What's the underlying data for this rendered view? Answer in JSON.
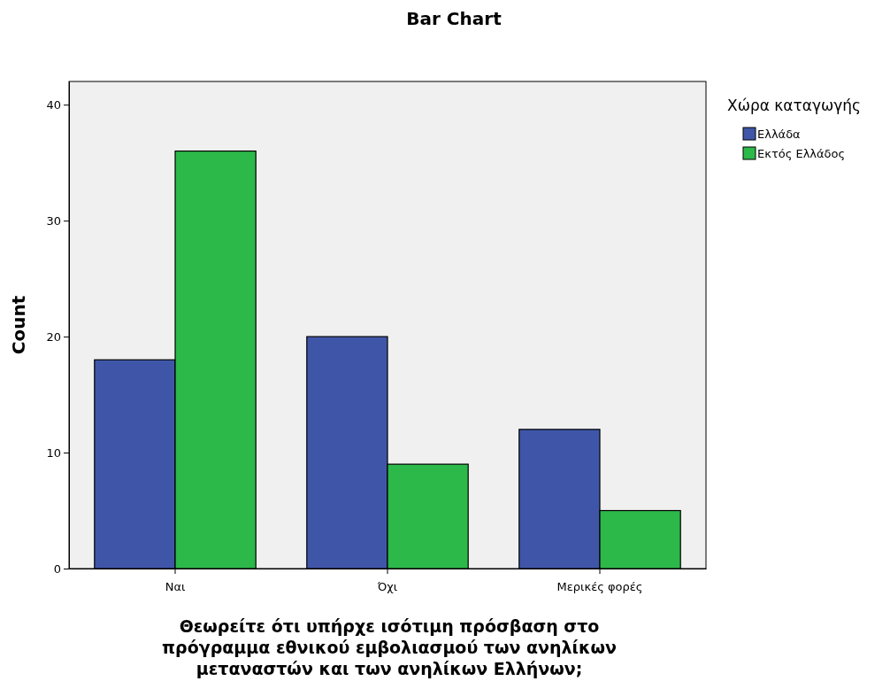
{
  "chart_data": {
    "type": "bar",
    "title": "Bar Chart",
    "xlabel": "Θεωρείτε ότι υπήρχε ισότιμη πρόσβαση στο πρόγραμμα εθνικού εμβολιασμού των ανηλίκων μεταναστών και των ανηλίκων Ελλήνων;",
    "ylabel": "Count",
    "legend_title": "Χώρα καταγωγής",
    "categories": [
      "Ναι",
      "Όχι",
      "Μερικές φορές"
    ],
    "series": [
      {
        "name": "Ελλάδα",
        "color": "#3f56a8",
        "values": [
          18,
          20,
          12
        ]
      },
      {
        "name": "Εκτός Ελλάδος",
        "color": "#2db84a",
        "values": [
          36,
          9,
          5
        ]
      }
    ],
    "ylim": [
      0,
      42
    ],
    "yticks": [
      0,
      10,
      20,
      30,
      40
    ],
    "grid": false,
    "legend": "top right"
  }
}
